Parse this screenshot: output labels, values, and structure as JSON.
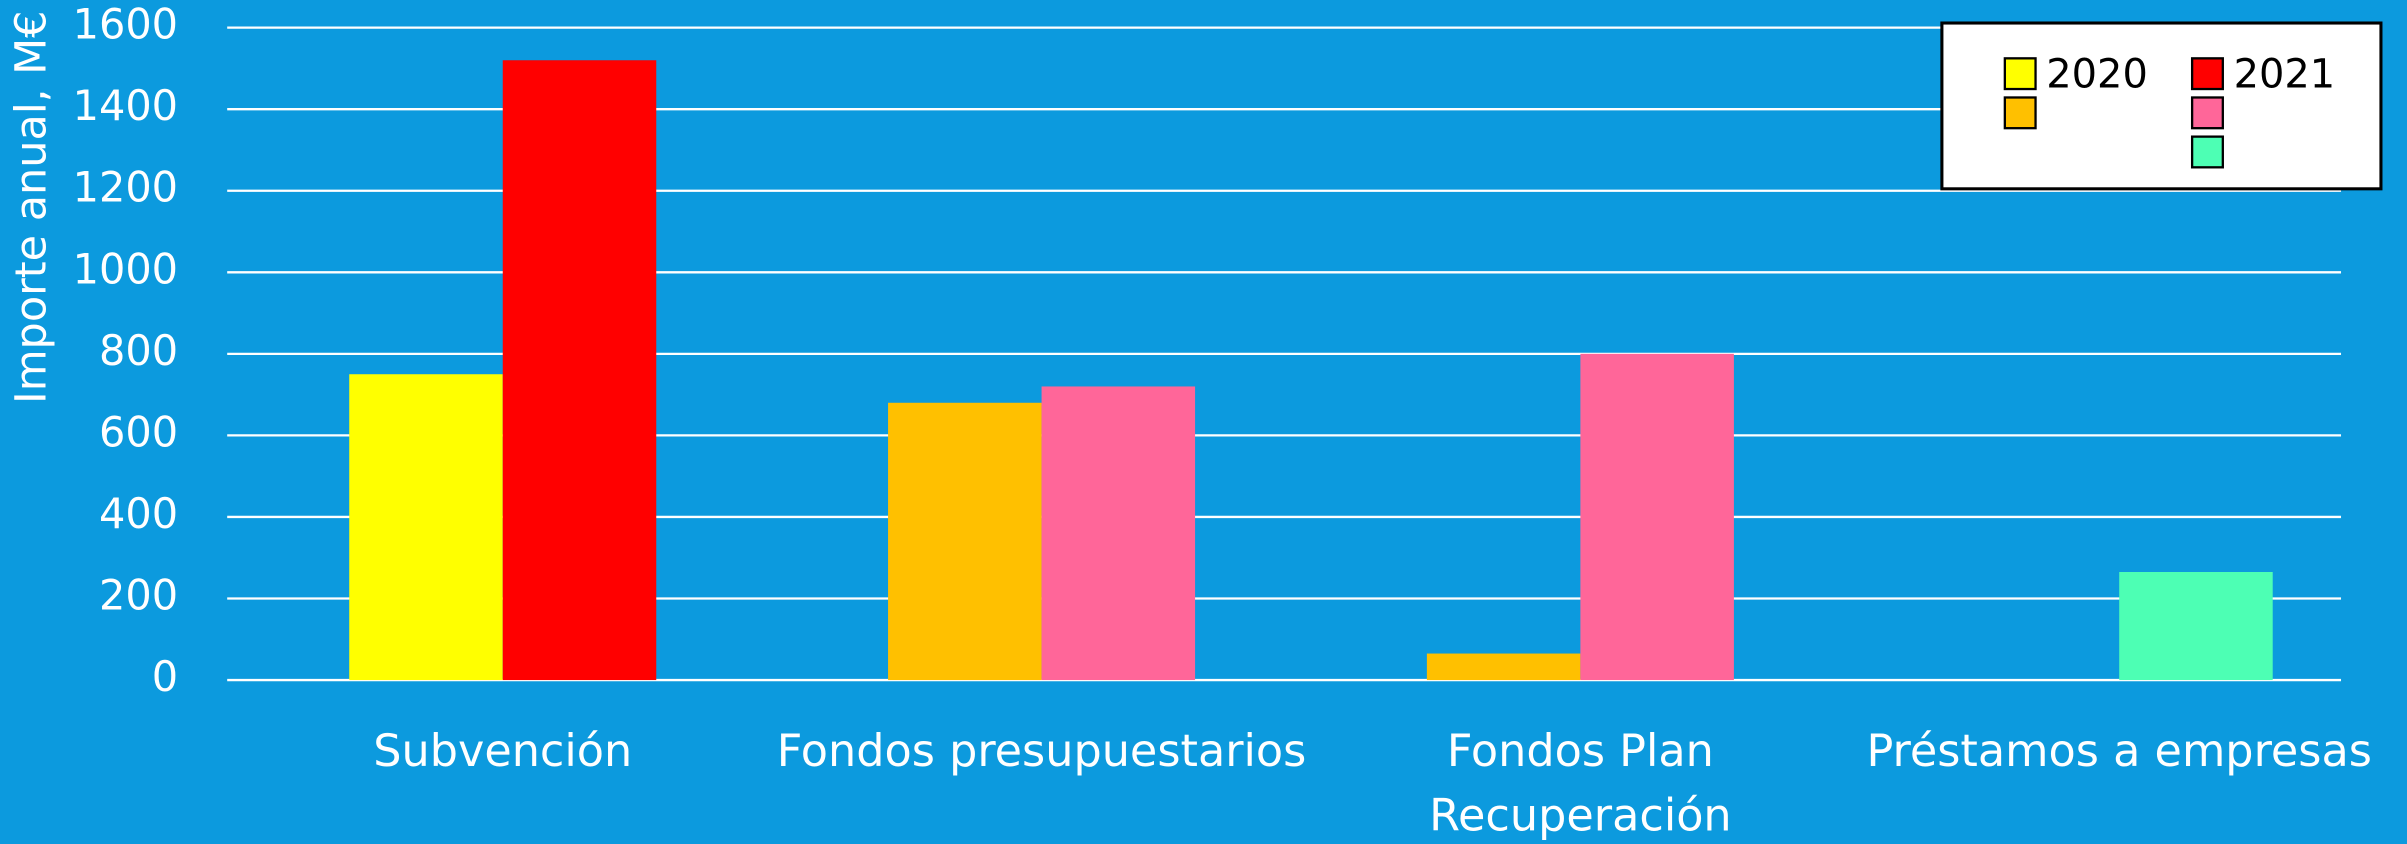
{
  "chart_data": {
    "type": "bar",
    "y_label": "Importe anual, M€",
    "categories": [
      "Subvención",
      "Fondos presupuestarios",
      "Fondos Plan Recuperación",
      "Préstamos a empresas"
    ],
    "series": [
      {
        "name": "2020",
        "colors": [
          "#ffff00",
          "#ffc000",
          "#ffc000",
          null
        ],
        "values": [
          750,
          680,
          65,
          null
        ]
      },
      {
        "name": "2021",
        "colors": [
          "#ff0000",
          "#ff6699",
          "#ff6699",
          "#4dffb4"
        ],
        "values": [
          1520,
          720,
          800,
          265
        ]
      }
    ],
    "ylim": [
      0,
      1600
    ],
    "yticks": [
      0,
      200,
      400,
      600,
      800,
      1000,
      1200,
      1400,
      1600
    ],
    "grid": true,
    "background": "#0c9ade",
    "legend": "upper right"
  }
}
